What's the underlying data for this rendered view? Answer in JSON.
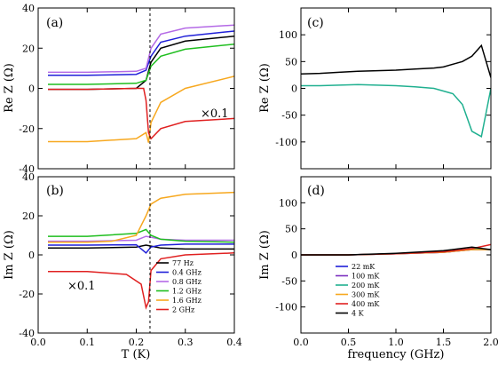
{
  "figure": {
    "xlabel_left": "T (K)",
    "xlabel_right": "frequency (GHz)",
    "ylabel_re": "Re Z (Ω)",
    "ylabel_im": "Im Z (Ω)"
  },
  "chart_data": [
    {
      "panel": "(a)",
      "type": "line",
      "annotation": "×0.1",
      "vline": 0.228,
      "xlim": [
        0.0,
        0.4
      ],
      "ylim": [
        -40,
        40
      ],
      "xticks": [
        "0.0",
        "0.1",
        "0.2",
        "0.3",
        "0.4"
      ],
      "yticks": [
        "40",
        "20",
        "0",
        "-20",
        "-40"
      ],
      "series": [
        {
          "name": "77 Hz",
          "color": "#000000",
          "x": [
            0.02,
            0.1,
            0.2,
            0.22,
            0.23,
            0.25,
            0.3,
            0.4
          ],
          "y": [
            -0.5,
            -0.5,
            0.0,
            4,
            13,
            20,
            23.5,
            26
          ]
        },
        {
          "name": "0.4 GHz",
          "color": "#1f1fd8",
          "x": [
            0.02,
            0.1,
            0.2,
            0.22,
            0.23,
            0.25,
            0.3,
            0.4
          ],
          "y": [
            6.5,
            6.5,
            7,
            9,
            16,
            23,
            26,
            28.5
          ]
        },
        {
          "name": "0.8 GHz",
          "color": "#b46ae6",
          "x": [
            0.02,
            0.1,
            0.2,
            0.22,
            0.23,
            0.25,
            0.3,
            0.4
          ],
          "y": [
            8,
            8,
            8.5,
            10,
            20,
            27,
            30,
            31.5
          ]
        },
        {
          "name": "1.2 GHz",
          "color": "#1fbe1f",
          "x": [
            0.02,
            0.1,
            0.2,
            0.22,
            0.23,
            0.25,
            0.3,
            0.4
          ],
          "y": [
            2,
            2,
            2.5,
            4,
            11,
            16,
            19.5,
            22
          ]
        },
        {
          "name": "1.6 GHz",
          "color": "#f7a81f",
          "x": [
            0.02,
            0.1,
            0.2,
            0.22,
            0.225,
            0.23,
            0.25,
            0.3,
            0.4
          ],
          "y": [
            -26.5,
            -26.5,
            -25,
            -22,
            -27,
            -17,
            -7,
            0,
            6
          ]
        },
        {
          "name": "2 GHz",
          "color": "#e02020",
          "x": [
            0.02,
            0.1,
            0.2,
            0.215,
            0.22,
            0.225,
            0.23,
            0.25,
            0.3,
            0.4
          ],
          "y": [
            -0.5,
            -0.5,
            0,
            0,
            -6,
            -22,
            -25,
            -20,
            -16.5,
            -15
          ]
        }
      ]
    },
    {
      "panel": "(b)",
      "type": "line",
      "annotation": "×0.1",
      "vline": 0.228,
      "xlim": [
        0.0,
        0.4
      ],
      "ylim": [
        -40,
        40
      ],
      "xticks": [
        "0.0",
        "0.1",
        "0.2",
        "0.3",
        "0.4"
      ],
      "yticks": [
        "40",
        "20",
        "0",
        "-20",
        "-40"
      ],
      "legend": [
        "77 Hz",
        "0.4 GHz",
        "0.8 GHz",
        "1.2 GHz",
        "1.6 GHz",
        "2 GHz"
      ],
      "series": [
        {
          "name": "77 Hz",
          "color": "#000000",
          "x": [
            0.02,
            0.1,
            0.2,
            0.22,
            0.23,
            0.25,
            0.3,
            0.4
          ],
          "y": [
            3.5,
            3.5,
            4,
            5,
            4.5,
            3.5,
            3,
            3
          ]
        },
        {
          "name": "0.4 GHz",
          "color": "#1f1fd8",
          "x": [
            0.02,
            0.1,
            0.2,
            0.22,
            0.23,
            0.25,
            0.3,
            0.4
          ],
          "y": [
            5,
            5,
            5.2,
            1,
            4,
            5,
            5.5,
            5.5
          ]
        },
        {
          "name": "0.8 GHz",
          "color": "#b46ae6",
          "x": [
            0.02,
            0.1,
            0.2,
            0.22,
            0.23,
            0.25,
            0.3,
            0.4
          ],
          "y": [
            7,
            7,
            7.5,
            9.5,
            9,
            8,
            7.5,
            7.5
          ]
        },
        {
          "name": "1.2 GHz",
          "color": "#1fbe1f",
          "x": [
            0.02,
            0.1,
            0.2,
            0.22,
            0.23,
            0.25,
            0.3,
            0.4
          ],
          "y": [
            9.5,
            9.5,
            11,
            13,
            10,
            8,
            7,
            6.5
          ]
        },
        {
          "name": "1.6 GHz",
          "color": "#f7a81f",
          "x": [
            0.02,
            0.1,
            0.15,
            0.2,
            0.22,
            0.23,
            0.25,
            0.3,
            0.4
          ],
          "y": [
            6.5,
            6.5,
            7,
            10,
            20,
            26,
            29,
            31,
            32
          ]
        },
        {
          "name": "2 GHz",
          "color": "#e02020",
          "x": [
            0.02,
            0.1,
            0.18,
            0.21,
            0.22,
            0.225,
            0.23,
            0.25,
            0.3,
            0.4
          ],
          "y": [
            -8.5,
            -8.5,
            -10,
            -15,
            -27,
            -24,
            -8,
            -2,
            0,
            1
          ]
        }
      ]
    },
    {
      "panel": "(c)",
      "type": "line",
      "xlim": [
        0.0,
        2.0
      ],
      "ylim": [
        -150,
        150
      ],
      "xticks": [
        "0.0",
        "0.5",
        "1.0",
        "1.5",
        "2.0"
      ],
      "yticks": [
        "100",
        "50",
        "0",
        "-50",
        "-100"
      ],
      "series": [
        {
          "name": "4 K",
          "color": "#000000",
          "x": [
            0.0,
            0.2,
            0.4,
            0.6,
            0.8,
            1.0,
            1.2,
            1.4,
            1.5,
            1.6,
            1.7,
            1.8,
            1.9,
            2.0
          ],
          "y": [
            27,
            28,
            30,
            32,
            33,
            34,
            36,
            38,
            40,
            45,
            50,
            60,
            80,
            20
          ]
        },
        {
          "name": "200 mK",
          "color": "#20b090",
          "x": [
            0.0,
            0.2,
            0.4,
            0.6,
            0.8,
            1.0,
            1.2,
            1.4,
            1.5,
            1.6,
            1.7,
            1.8,
            1.9,
            2.0
          ],
          "y": [
            5,
            5,
            6,
            7,
            6,
            5,
            3,
            0,
            -5,
            -10,
            -30,
            -80,
            -90,
            0
          ]
        }
      ]
    },
    {
      "panel": "(d)",
      "type": "line",
      "xlim": [
        0.0,
        2.0
      ],
      "ylim": [
        -150,
        150
      ],
      "xticks": [
        "0.0",
        "0.5",
        "1.0",
        "1.5",
        "2.0"
      ],
      "yticks": [
        "100",
        "50",
        "0",
        "-50",
        "-100"
      ],
      "legend": [
        "22 mK",
        "100 mK",
        "200 mK",
        "300 mK",
        "400 mK",
        "4 K"
      ],
      "series": [
        {
          "name": "22 mK",
          "color": "#1f1fd8",
          "x": [
            0.0,
            0.5,
            1.0,
            1.5,
            1.8,
            2.0
          ],
          "y": [
            0,
            0,
            2,
            5,
            10,
            10
          ]
        },
        {
          "name": "100 mK",
          "color": "#7b2fbf",
          "x": [
            0.0,
            0.5,
            1.0,
            1.5,
            1.8,
            2.0
          ],
          "y": [
            0,
            0,
            2,
            5,
            10,
            10
          ]
        },
        {
          "name": "200 mK",
          "color": "#20b090",
          "x": [
            0.0,
            0.5,
            1.0,
            1.5,
            1.8,
            2.0
          ],
          "y": [
            0,
            0,
            2,
            6,
            12,
            10
          ]
        },
        {
          "name": "300 mK",
          "color": "#f7a81f",
          "x": [
            0.0,
            0.5,
            1.0,
            1.5,
            1.8,
            2.0
          ],
          "y": [
            0,
            0,
            2,
            5,
            10,
            10
          ]
        },
        {
          "name": "400 mK",
          "color": "#e02020",
          "x": [
            0.0,
            0.5,
            1.0,
            1.5,
            1.8,
            2.0
          ],
          "y": [
            0,
            0,
            2,
            6,
            12,
            20
          ]
        },
        {
          "name": "4 K",
          "color": "#000000",
          "x": [
            0.0,
            0.5,
            1.0,
            1.5,
            1.8,
            2.0
          ],
          "y": [
            0,
            0,
            3,
            8,
            15,
            10
          ]
        }
      ]
    }
  ]
}
